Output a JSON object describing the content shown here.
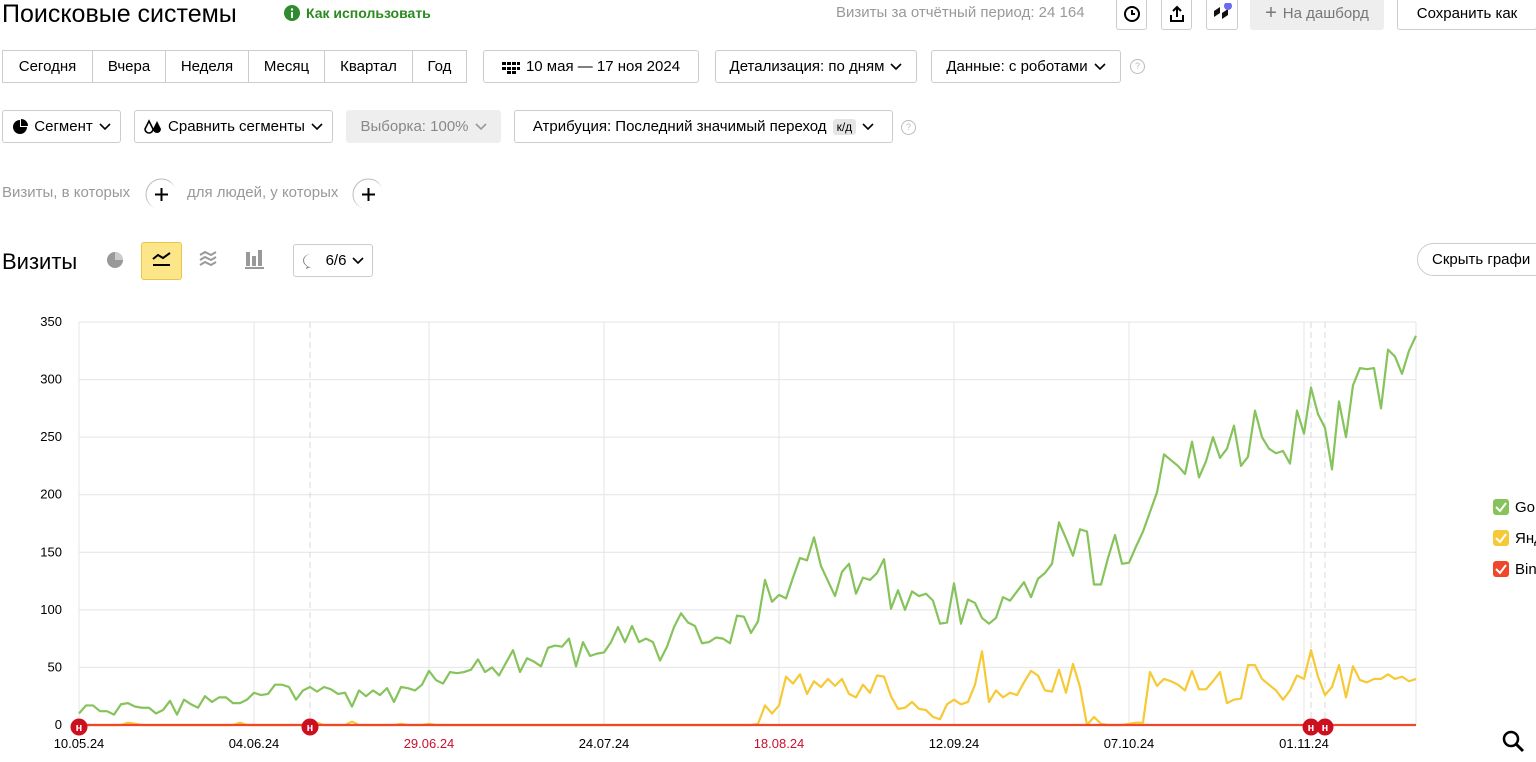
{
  "header": {
    "title": "Поисковые системы",
    "help_link": "Как использовать",
    "visits_summary": "Визиты за отчётный период: 24 164"
  },
  "toolbar": {
    "dashboard": "На дашборд",
    "save": "Сохранить как"
  },
  "periods": [
    "Сегодня",
    "Вчера",
    "Неделя",
    "Месяц",
    "Квартал",
    "Год"
  ],
  "date_range": "10 мая — 17 ноя 2024",
  "detail": "Детализация: по дням",
  "data_filter": "Данные: с роботами",
  "segment": "Сегмент",
  "compare": "Сравнить сегменты",
  "sample": "Выборка: 100%",
  "attribution": "Атрибуция: Последний значимый переход",
  "attribution_badge": "к/д",
  "filters": {
    "visits": "Визиты, в которых",
    "people": "для людей, у которых"
  },
  "section": {
    "title": "Визиты",
    "annotations_toggle": "6/6",
    "hide_chart": "Скрыть графи"
  },
  "chart_data": {
    "type": "line",
    "categories": [
      "10.05.24",
      null,
      null,
      null,
      null,
      null,
      null,
      null,
      null,
      null,
      null,
      null,
      null,
      null,
      null,
      null,
      null,
      null,
      null,
      null,
      null,
      null,
      null,
      null,
      null,
      "04.06.24",
      null,
      null,
      null,
      null,
      null,
      null,
      null,
      null,
      null,
      null,
      null,
      null,
      null,
      null,
      null,
      null,
      null,
      null,
      null,
      null,
      null,
      null,
      null,
      null,
      "29.06.24",
      null,
      null,
      null,
      null,
      null,
      null,
      null,
      null,
      null,
      null,
      null,
      null,
      null,
      null,
      null,
      null,
      null,
      null,
      null,
      null,
      null,
      null,
      null,
      null,
      "24.07.24",
      null,
      null,
      null,
      null,
      null,
      null,
      null,
      null,
      null,
      null,
      null,
      null,
      null,
      null,
      null,
      null,
      null,
      null,
      null,
      null,
      null,
      null,
      null,
      null,
      "18.08.24",
      null,
      null,
      null,
      null,
      null,
      null,
      null,
      null,
      null,
      null,
      null,
      null,
      null,
      null,
      null,
      null,
      null,
      null,
      null,
      null,
      null,
      null,
      null,
      null,
      "12.09.24",
      null,
      null,
      null,
      null,
      null,
      null,
      null,
      null,
      null,
      null,
      null,
      null,
      null,
      null,
      null,
      null,
      null,
      null,
      null,
      null,
      null,
      null,
      null,
      null,
      "07.10.24",
      null,
      null,
      null,
      null,
      null,
      null,
      null,
      null,
      null,
      null,
      null,
      null,
      null,
      null,
      null,
      null,
      null,
      null,
      null,
      null,
      null,
      null,
      null,
      null,
      "01.11.24",
      null,
      null,
      null,
      null,
      null,
      null,
      null,
      null,
      null,
      null,
      null,
      null,
      null,
      null,
      null,
      null
    ],
    "series": [
      {
        "name": "Go",
        "color": "#86c35b",
        "values": [
          10,
          17,
          17,
          12,
          12,
          9,
          18,
          19,
          16,
          15,
          15,
          10,
          13,
          21,
          9,
          22,
          18,
          15,
          25,
          20,
          24,
          24,
          19,
          19,
          22,
          28,
          26,
          27,
          35,
          35,
          33,
          22,
          30,
          33,
          29,
          33,
          31,
          27,
          28,
          16,
          30,
          25,
          30,
          26,
          32,
          20,
          33,
          32,
          30,
          35,
          47,
          39,
          36,
          46,
          45,
          46,
          48,
          57,
          46,
          50,
          43,
          54,
          65,
          46,
          58,
          55,
          51,
          67,
          69,
          68,
          75,
          51,
          72,
          60,
          62,
          63,
          72,
          85,
          72,
          86,
          72,
          75,
          72,
          56,
          68,
          85,
          97,
          89,
          86,
          71,
          72,
          76,
          75,
          71,
          95,
          94,
          80,
          90,
          126,
          107,
          113,
          110,
          128,
          145,
          143,
          163,
          138,
          125,
          112,
          133,
          140,
          114,
          128,
          126,
          132,
          144,
          101,
          117,
          100,
          116,
          112,
          114,
          108,
          88,
          89,
          123,
          88,
          109,
          106,
          93,
          88,
          93,
          111,
          108,
          116,
          124,
          111,
          127,
          132,
          140,
          176,
          162,
          147,
          170,
          168,
          122,
          122,
          145,
          165,
          140,
          141,
          155,
          168,
          185,
          202,
          235,
          230,
          225,
          218,
          246,
          215,
          229,
          250,
          232,
          240,
          260,
          225,
          233,
          273,
          250,
          240,
          236,
          238,
          227,
          273,
          253,
          293,
          270,
          258,
          222,
          281,
          250,
          295,
          310,
          309,
          310,
          275,
          326,
          320,
          305,
          325,
          338
        ]
      },
      {
        "name": "Янд",
        "color": "#f6c935",
        "values": [
          0,
          0,
          0,
          0,
          0,
          0,
          0,
          2,
          1,
          0,
          0,
          0,
          0,
          0,
          0,
          0,
          0,
          0,
          0,
          0,
          0,
          0,
          0,
          2,
          0,
          0,
          0,
          0,
          0,
          0,
          0,
          0,
          0,
          1,
          2,
          0,
          0,
          0,
          0,
          3,
          0,
          0,
          0,
          0,
          0,
          0,
          1,
          0,
          0,
          0,
          1,
          0,
          0,
          0,
          0,
          0,
          0,
          0,
          0,
          0,
          0,
          0,
          0,
          0,
          0,
          0,
          0,
          0,
          0,
          0,
          0,
          0,
          0,
          0,
          0,
          0,
          0,
          0,
          0,
          0,
          0,
          0,
          0,
          0,
          0,
          0,
          0,
          0,
          0,
          0,
          0,
          0,
          0,
          0,
          0,
          0,
          0,
          1,
          17,
          10,
          17,
          42,
          36,
          44,
          27,
          38,
          33,
          40,
          34,
          40,
          27,
          24,
          35,
          28,
          43,
          42,
          25,
          14,
          15,
          20,
          14,
          13,
          7,
          5,
          18,
          22,
          18,
          20,
          35,
          64,
          20,
          30,
          24,
          28,
          26,
          37,
          47,
          43,
          30,
          29,
          48,
          28,
          53,
          33,
          0,
          7,
          1,
          0,
          0,
          0,
          1,
          2,
          2,
          46,
          34,
          40,
          38,
          35,
          30,
          47,
          31,
          31,
          38,
          46,
          19,
          22,
          23,
          52,
          52,
          40,
          35,
          30,
          22,
          30,
          43,
          40,
          65,
          42,
          26,
          33,
          52,
          24,
          51,
          39,
          37,
          40,
          40,
          44,
          40,
          42,
          38,
          40
        ]
      },
      {
        "name": "Bin",
        "color": "#f0462a",
        "values": [
          0,
          0,
          0,
          0,
          0,
          0,
          0,
          0,
          0,
          0,
          0,
          0,
          0,
          0,
          0,
          0,
          0,
          0,
          0,
          0,
          0,
          0,
          0,
          0,
          0,
          0,
          0,
          0,
          0,
          0,
          0,
          0,
          0,
          0,
          0,
          0,
          0,
          0,
          0,
          0,
          0,
          0,
          0,
          0,
          0,
          0,
          0,
          0,
          0,
          0,
          0,
          0,
          0,
          0,
          0,
          0,
          0,
          0,
          0,
          0,
          0,
          0,
          0,
          0,
          0,
          0,
          0,
          0,
          0,
          0,
          0,
          0,
          0,
          0,
          0,
          0,
          0,
          0,
          0,
          0,
          0,
          0,
          0,
          0,
          0,
          0,
          0,
          0,
          0,
          0,
          0,
          0,
          0,
          0,
          0,
          0,
          0,
          0,
          0,
          0,
          0,
          0,
          0,
          0,
          0,
          0,
          0,
          0,
          0,
          0,
          0,
          0,
          0,
          0,
          0,
          0,
          0,
          0,
          0,
          0,
          0,
          0,
          0,
          0,
          0,
          0,
          0,
          0,
          0,
          0,
          0,
          0,
          0,
          0,
          0,
          0,
          0,
          0,
          0,
          0,
          0,
          0,
          0,
          0,
          0,
          0,
          0,
          0,
          0,
          0,
          0,
          0,
          0,
          0,
          0,
          0,
          0,
          0,
          0,
          0,
          0,
          0,
          0,
          0,
          0,
          0,
          0,
          0,
          0,
          0,
          0,
          0,
          0,
          0,
          0,
          0,
          0,
          0,
          0,
          0,
          0,
          0,
          0,
          0,
          0,
          0,
          0,
          0,
          0,
          0,
          0,
          0
        ]
      }
    ],
    "ylim": [
      0,
      350
    ],
    "yticks": [
      0,
      50,
      100,
      150,
      200,
      250,
      300,
      350
    ],
    "grid": true,
    "highlighted_categories": [
      50,
      100
    ],
    "highlight_color": "#c8102e",
    "annotations": [
      {
        "label": "н",
        "at": 0
      },
      {
        "label": "н",
        "at": 33
      },
      {
        "label": "н",
        "at": 176
      },
      {
        "label": "н",
        "at": 178
      }
    ],
    "annotation_color": "#cc1020",
    "legend": "right"
  }
}
